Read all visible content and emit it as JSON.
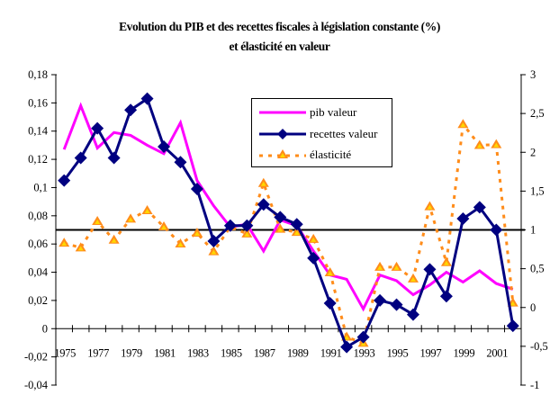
{
  "chart_data": {
    "type": "line",
    "title": "Evolution du PIB et des recettes fiscales à législation constante (%)",
    "subtitle": "et élasticité en valeur",
    "xlabel": "",
    "ylabel": "",
    "y2label": "",
    "categories": [
      "1975",
      "1976",
      "1977",
      "1978",
      "1979",
      "1980",
      "1981",
      "1982",
      "1983",
      "1984",
      "1985",
      "1986",
      "1987",
      "1988",
      "1989",
      "1990",
      "1991",
      "1992",
      "1993",
      "1994",
      "1995",
      "1996",
      "1997",
      "1998",
      "1999",
      "2000",
      "2001",
      "2002"
    ],
    "x_tick_labels": [
      "1975",
      "1977",
      "1979",
      "1981",
      "1983",
      "1985",
      "1987",
      "1989",
      "1991",
      "1993",
      "1995",
      "1997",
      "1999",
      "2001"
    ],
    "ylim": [
      -0.04,
      0.18
    ],
    "y_ticks": [
      "-0,04",
      "-0,02",
      "0",
      "0,02",
      "0,04",
      "0,06",
      "0,08",
      "0,1",
      "0,12",
      "0,14",
      "0,16",
      "0,18"
    ],
    "y2lim": [
      -1,
      3
    ],
    "y2_ticks": [
      "-1",
      "-0,5",
      "0",
      "0,5",
      "1",
      "1,5",
      "2",
      "2,5",
      "3"
    ],
    "reference_line": {
      "axis": "y2",
      "value": 1
    },
    "grid": false,
    "legend_position": "top-center",
    "series": [
      {
        "name": "pib valeur",
        "axis": "y",
        "color": "#FF00FF",
        "style": "solid",
        "marker": "none",
        "values": [
          0.127,
          0.158,
          0.128,
          0.139,
          0.137,
          0.13,
          0.124,
          0.146,
          0.105,
          0.087,
          0.072,
          0.074,
          0.055,
          0.077,
          0.073,
          0.055,
          0.038,
          0.035,
          0.014,
          0.038,
          0.034,
          0.024,
          0.031,
          0.04,
          0.033,
          0.041,
          0.032,
          0.028
        ]
      },
      {
        "name": "recettes valeur",
        "axis": "y",
        "color": "#000080",
        "style": "solid",
        "marker": "diamond",
        "values": [
          0.105,
          0.121,
          0.142,
          0.121,
          0.155,
          0.163,
          0.129,
          0.118,
          0.099,
          0.062,
          0.073,
          0.073,
          0.088,
          0.079,
          0.074,
          0.05,
          0.018,
          -0.013,
          -0.006,
          0.02,
          0.017,
          0.01,
          0.042,
          0.023,
          0.078,
          0.086,
          0.07,
          0.002
        ]
      },
      {
        "name": "élasticité",
        "axis": "y2",
        "color": "#FF8C1A",
        "marker_fill": "#FFD700",
        "style": "dotted",
        "marker": "triangle",
        "values": [
          0.83,
          0.77,
          1.11,
          0.87,
          1.14,
          1.25,
          1.04,
          0.82,
          0.96,
          0.72,
          1.04,
          0.95,
          1.6,
          1.01,
          0.97,
          0.88,
          0.45,
          -0.38,
          -0.46,
          0.52,
          0.52,
          0.37,
          1.3,
          0.58,
          2.36,
          2.09,
          2.1,
          0.06
        ]
      }
    ]
  }
}
